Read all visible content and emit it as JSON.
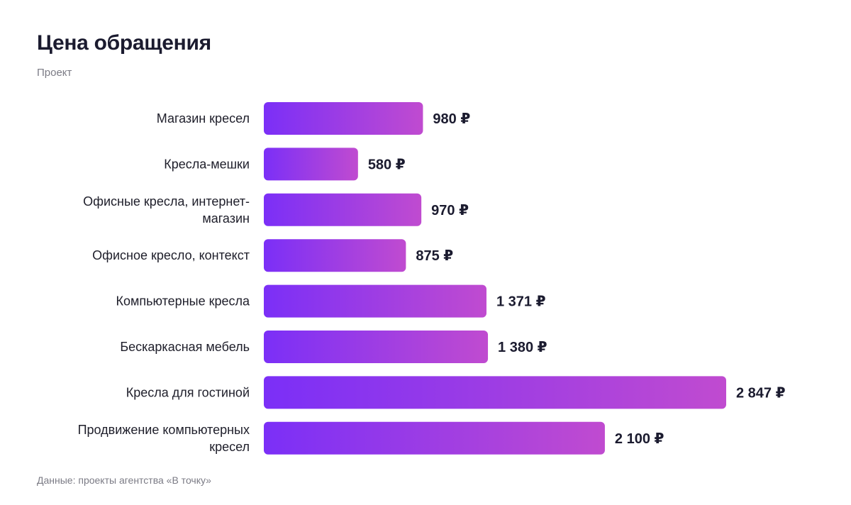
{
  "header": {
    "title": "Цена обращения",
    "subtitle": "Проект"
  },
  "footer": {
    "source": "Данные: проекты агентства «В точку»"
  },
  "colors": {
    "bar_start": "#7b2ff7",
    "bar_end": "#c04bd0",
    "text": "#1b1b2f",
    "muted": "#7b7b85"
  },
  "chart_data": {
    "type": "bar",
    "orientation": "horizontal",
    "categories": [
      "Магазин кресел",
      "Кресла-мешки",
      "Офисные кресла, интернет-магазин",
      "Офисное кресло, контекст",
      "Компьютерные кресла",
      "Бескаркасная мебель",
      "Кресла для гостиной",
      "Продвижение компьютерных кресел"
    ],
    "category_lines": [
      [
        "Магазин кресел"
      ],
      [
        "Кресла-мешки"
      ],
      [
        "Офисные кресла, интернет-",
        "магазин"
      ],
      [
        "Офисное кресло, контекст"
      ],
      [
        "Компьютерные кресла"
      ],
      [
        "Бескаркасная мебель"
      ],
      [
        "Кресла для гостиной"
      ],
      [
        "Продвижение компьютерных",
        "кресел"
      ]
    ],
    "values": [
      980,
      580,
      970,
      875,
      1371,
      1380,
      2847,
      2100
    ],
    "value_labels": [
      "980 ₽",
      "580 ₽",
      "970 ₽",
      "875 ₽",
      "1 371 ₽",
      "1 380 ₽",
      "2 847 ₽",
      "2 100 ₽"
    ],
    "unit": "₽",
    "title": "Цена обращения",
    "subtitle": "Проект",
    "xlabel": "",
    "ylabel": "",
    "grid": false,
    "legend": "none"
  }
}
